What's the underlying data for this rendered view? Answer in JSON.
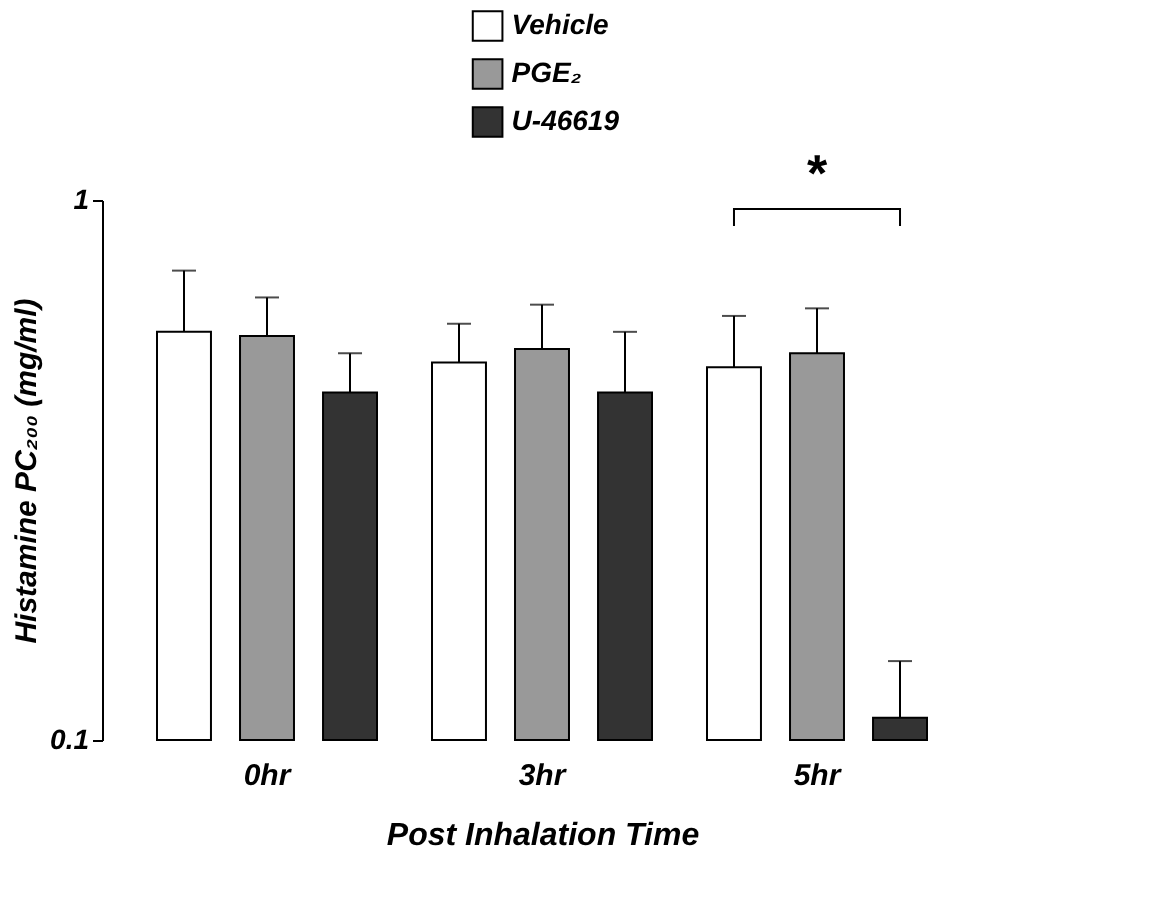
{
  "chart_data": {
    "type": "bar",
    "categories": [
      "0hr",
      "3hr",
      "5hr"
    ],
    "xlabel": "Post Inhalation Time",
    "ylabel": "Histamine PC₂₀₀ (mg/ml)",
    "log": true,
    "ylim": [
      0.1,
      1
    ],
    "yticks": [
      0.1,
      1
    ],
    "legend": "top",
    "grid": false,
    "series": [
      {
        "name": "Vehicle",
        "color": "#ffffff",
        "values": [
          0.57,
          0.5,
          0.49
        ],
        "errors": [
          [
            0.57,
            0.74
          ],
          [
            0.5,
            0.59
          ],
          [
            0.49,
            0.61
          ]
        ]
      },
      {
        "name": "PGE₂",
        "color": "#999999",
        "values": [
          0.56,
          0.53,
          0.52
        ],
        "errors": [
          [
            0.56,
            0.66
          ],
          [
            0.53,
            0.64
          ],
          [
            0.52,
            0.63
          ]
        ]
      },
      {
        "name": "U-46619",
        "color": "#333333",
        "values": [
          0.44,
          0.44,
          0.11
        ],
        "errors": [
          [
            0.44,
            0.52
          ],
          [
            0.44,
            0.57
          ],
          [
            0.11,
            0.14
          ]
        ]
      }
    ],
    "annotations": [
      "*"
    ]
  }
}
